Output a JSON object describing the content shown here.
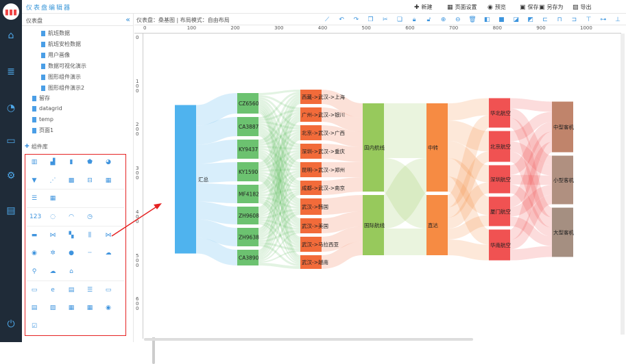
{
  "app": {
    "title": "仪表盘编辑器"
  },
  "nav": [
    {
      "icon": "home-icon",
      "glyph": "⌂"
    },
    {
      "icon": "database-icon",
      "glyph": "≣"
    },
    {
      "icon": "dashboard-icon",
      "glyph": "◔"
    },
    {
      "icon": "monitor-icon",
      "glyph": "▭"
    },
    {
      "icon": "settings-icon",
      "glyph": "⚙"
    },
    {
      "icon": "pdf-icon",
      "glyph": "▤"
    },
    {
      "icon": "power-icon",
      "glyph": "⏻"
    }
  ],
  "topbar": {
    "buttons": [
      {
        "label": "新建",
        "icon": "new-icon",
        "glyph": "✚"
      },
      {
        "label": "页面设置",
        "icon": "page-settings-icon",
        "glyph": "▦"
      },
      {
        "label": "预览",
        "icon": "eye-icon",
        "glyph": "◉"
      },
      {
        "label": "保存",
        "icon": "save-icon",
        "glyph": "▣"
      },
      {
        "label": "另存为",
        "icon": "save-as-icon",
        "glyph": "▣"
      },
      {
        "label": "导出",
        "icon": "export-icon",
        "glyph": "▨"
      }
    ]
  },
  "panel": {
    "title": "仪表盘",
    "collapse": "«",
    "tree": [
      {
        "label": "航班数据",
        "level": 2
      },
      {
        "label": "航班安检数据",
        "level": 2
      },
      {
        "label": "用户画像",
        "level": 2
      },
      {
        "label": "数据可视化演示",
        "level": 2
      },
      {
        "label": "图形组件演示",
        "level": 2
      },
      {
        "label": "图形组件演示2",
        "level": 2
      },
      {
        "label": "留存",
        "level": 1
      },
      {
        "label": "datagrid",
        "level": 1
      },
      {
        "label": "temp",
        "level": 1
      },
      {
        "label": "页面1",
        "level": 1
      }
    ],
    "component_library": "组件库",
    "components": [
      [
        "bar-chart-icon",
        "line-bar-icon",
        "stacked-bar-icon",
        "radar-icon",
        "pie-icon"
      ],
      [
        "funnel-icon",
        "scatter-icon",
        "heatmap-icon",
        "boxplot-icon",
        "kline-icon"
      ],
      [
        "data-table-icon",
        "grid-table-icon"
      ],
      [
        "number-icon",
        "progress-ring-icon",
        "gauge-icon",
        "clock-icon"
      ],
      [
        "map-icon",
        "graph-icon",
        "treemap-icon",
        "parallel-icon",
        "sankey-icon"
      ],
      [
        "sunburst-icon",
        "tree-icon",
        "globe-icon",
        "line-icon",
        "china-map-icon"
      ],
      [
        "map-pin-icon",
        "region-map-icon",
        "location-icon"
      ],
      [
        "window-icon",
        "browser-icon",
        "folder-icon",
        "text-icon",
        "tag-icon"
      ],
      [
        "select-icon",
        "image-icon",
        "date-icon",
        "datetime-icon",
        "radio-icon"
      ],
      [
        "checkbox-icon"
      ]
    ]
  },
  "infobar": {
    "text": "仪表盘：桑基图 | 布局模式：自由布局"
  },
  "toolbar": [
    "link-icon",
    "undo-icon",
    "redo-icon",
    "copy-icon",
    "cut-icon",
    "paste-icon",
    "lock-icon",
    "unlock-icon",
    "zoom-in-icon",
    "zoom-out-icon",
    "delete-icon",
    "bring-forward-icon",
    "bring-front-icon",
    "send-back-icon",
    "send-backward-icon",
    "align-left-icon",
    "align-center-icon",
    "align-right-icon",
    "align-top-icon",
    "align-middle-icon",
    "align-bottom-icon"
  ],
  "ruler": {
    "top": [
      "0",
      "100",
      "200",
      "300",
      "400",
      "500",
      "600",
      "700",
      "800",
      "900",
      "1000"
    ],
    "left": [
      "0",
      "100",
      "200",
      "300",
      "400",
      "500",
      "600"
    ]
  },
  "chart_data": {
    "type": "sankey",
    "columns": [
      {
        "nodes": [
          "汇总"
        ],
        "color": "#4fb3ee"
      },
      {
        "nodes": [
          "CZ6560",
          "CA3887",
          "KY9437",
          "KY1590",
          "MF4182",
          "ZH9608",
          "ZH9638",
          "CA3890"
        ],
        "color": "#6cc270"
      },
      {
        "nodes": [
          "西藏->武汉->上海",
          "广州->武汉->银川",
          "北京->武汉->广西",
          "深圳->武汉->重庆",
          "昆明->武汉->郑州",
          "成都->武汉->南京",
          "武汉->韩国",
          "武汉->美国",
          "武汉->马拉西亚",
          "武汉->越南"
        ],
        "color": "#f26b3a"
      },
      {
        "nodes": [
          "国内航线",
          "国际航线"
        ],
        "color": "#97c95c"
      },
      {
        "nodes": [
          "中转",
          "直达"
        ],
        "color": "#f68b43"
      },
      {
        "nodes": [
          "华北航空",
          "北京航空",
          "深圳航空",
          "厦门航空",
          "华南航空"
        ],
        "color": "#f05252"
      },
      {
        "nodes": [
          "中型客机",
          "小型客机",
          "大型客机"
        ],
        "colors": [
          "#c0846b",
          "#b09080",
          "#a58f81"
        ]
      }
    ],
    "flows": [
      [
        [
          30,
          28,
          28,
          28,
          27,
          26,
          27,
          23
        ]
      ],
      [
        [
          3,
          3,
          3,
          3,
          3,
          3,
          3,
          3,
          3,
          3
        ],
        [
          3,
          3,
          3,
          3,
          3,
          3,
          3,
          3,
          2,
          2
        ],
        [
          3,
          3,
          3,
          3,
          3,
          2,
          3,
          3,
          3,
          2
        ],
        [
          3,
          2,
          3,
          3,
          3,
          3,
          3,
          3,
          3,
          2
        ],
        [
          2,
          3,
          3,
          3,
          3,
          3,
          3,
          2,
          3,
          2
        ],
        [
          3,
          2,
          2,
          3,
          3,
          2,
          3,
          3,
          3,
          2
        ],
        [
          2,
          3,
          3,
          2,
          2,
          3,
          3,
          3,
          3,
          3
        ],
        [
          2,
          2,
          2,
          2,
          2,
          2,
          3,
          2,
          2,
          4
        ]
      ],
      [
        [
          21,
          0
        ],
        [
          21,
          0
        ],
        [
          22,
          0
        ],
        [
          22,
          0
        ],
        [
          22,
          0
        ],
        [
          21,
          0
        ],
        [
          0,
          24
        ],
        [
          0,
          22
        ],
        [
          0,
          22
        ],
        [
          0,
          20
        ]
      ],
      [
        [
          80,
          49
        ],
        [
          49,
          39
        ]
      ],
      [
        [
          25,
          30,
          25,
          27,
          22
        ],
        [
          18,
          15,
          16,
          16,
          23
        ]
      ],
      [
        [
          15,
          14,
          14
        ],
        [
          15,
          15,
          15
        ],
        [
          14,
          14,
          13
        ],
        [
          15,
          14,
          14
        ],
        [
          15,
          14,
          16
        ]
      ]
    ]
  }
}
